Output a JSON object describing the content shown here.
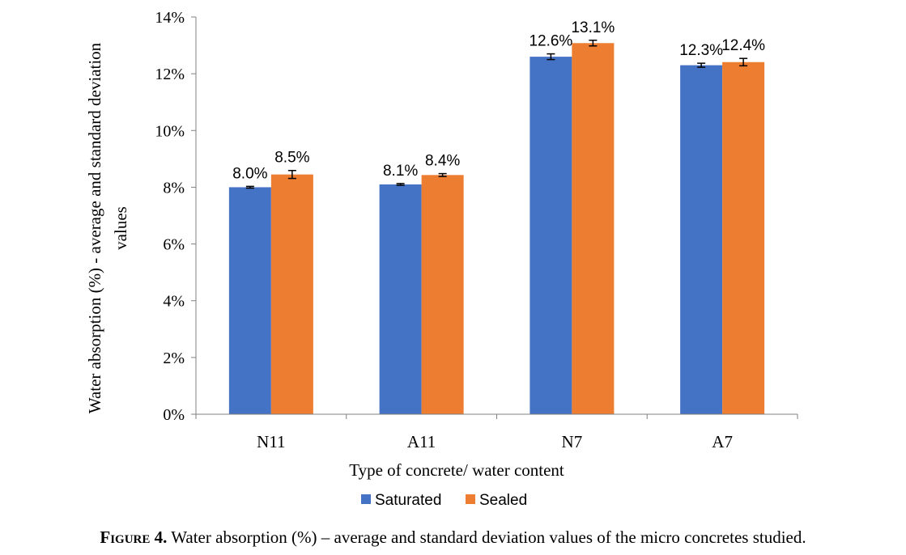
{
  "caption": {
    "figure_label": "Figure 4.",
    "text": "Water absorption (%) – average and standard deviation values of the micro concretes studied."
  },
  "colors": {
    "saturated": "#4472C4",
    "sealed": "#ED7D31",
    "axis": "#808080",
    "error_bar": "#000000"
  },
  "chart_data": {
    "type": "bar",
    "title": "",
    "xlabel": "Type of concrete/ water content",
    "ylabel_line1": "Water absorption (%) - average and standard deviation",
    "ylabel_line2": "values",
    "categories": [
      "N11",
      "A11",
      "N7",
      "A7"
    ],
    "ylim": [
      0,
      14
    ],
    "ytick_step": 2,
    "ytick_labels": [
      "0%",
      "2%",
      "4%",
      "6%",
      "8%",
      "10%",
      "12%",
      "14%"
    ],
    "grid": false,
    "legend_position": "bottom",
    "series": [
      {
        "name": "Saturated",
        "values": [
          8.0,
          8.1,
          12.6,
          12.3
        ],
        "errors": [
          0.03,
          0.03,
          0.1,
          0.07
        ],
        "labels": [
          "8.0%",
          "8.1%",
          "12.6%",
          "12.3%"
        ]
      },
      {
        "name": "Sealed",
        "values": [
          8.45,
          8.43,
          13.08,
          12.41
        ],
        "errors": [
          0.14,
          0.05,
          0.1,
          0.13
        ],
        "labels": [
          "8.5%",
          "8.4%",
          "13.1%",
          "12.4%"
        ]
      }
    ]
  }
}
